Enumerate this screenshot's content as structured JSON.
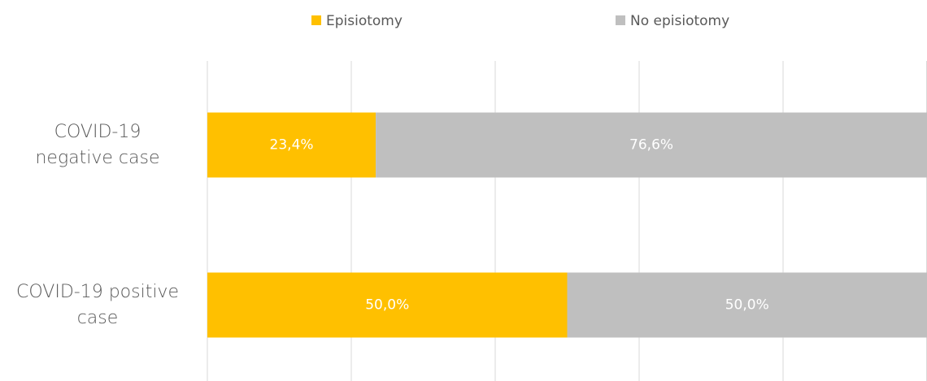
{
  "chart_data": {
    "type": "stacked-barh",
    "categories": [
      "COVID-19\nnegative case",
      "COVID-19 positive\ncase"
    ],
    "series": [
      {
        "name": "Episiotomy",
        "color": "#ffc000",
        "values": [
          23.4,
          50.0
        ],
        "value_labels": [
          "23,4%",
          "50,0%"
        ]
      },
      {
        "name": "No episiotomy",
        "color": "#bfbfbf",
        "values": [
          76.6,
          50.0
        ],
        "value_labels": [
          "76,6%",
          "50,0%"
        ]
      }
    ],
    "xlim": [
      0,
      100
    ],
    "xticks": [
      0,
      20,
      40,
      60,
      80,
      100
    ],
    "grid": true,
    "legend": "top"
  }
}
